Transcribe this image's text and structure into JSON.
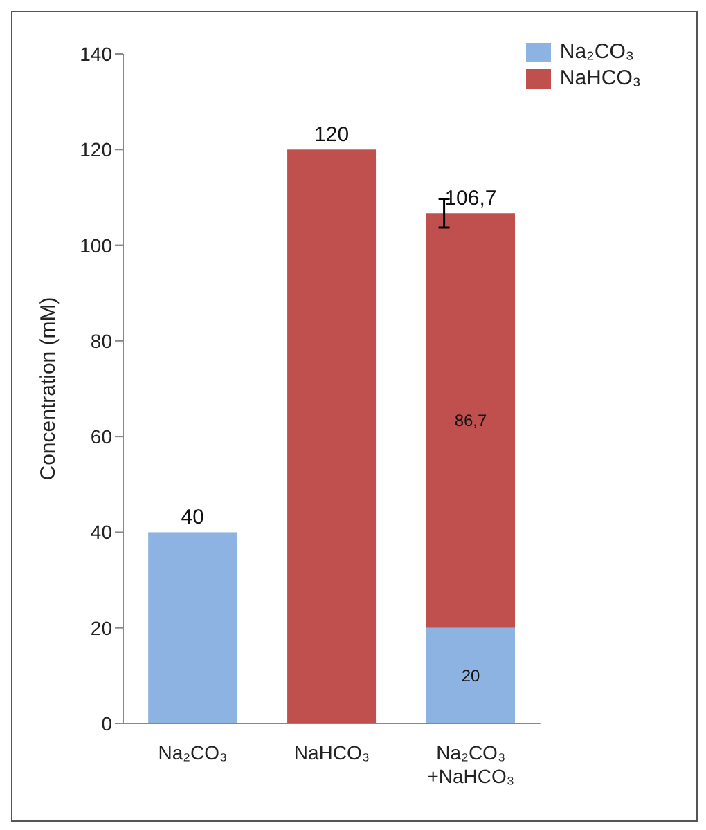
{
  "chart_data": {
    "type": "bar",
    "stacked": true,
    "ylabel": "Concentration (mM)",
    "categories": [
      "Na₂CO₃",
      "NaHCO₃",
      "Na₂CO₃ +NaHCO₃"
    ],
    "series": [
      {
        "name": "Na₂CO₃",
        "color": "#8db3e2",
        "values": [
          40,
          null,
          20
        ],
        "value_labels": [
          null,
          null,
          "20"
        ]
      },
      {
        "name": "NaHCO₃",
        "color": "#c0504d",
        "values": [
          null,
          120,
          86.7
        ],
        "value_labels": [
          null,
          null,
          "86,7"
        ],
        "errors": [
          null,
          null,
          3
        ]
      }
    ],
    "totals": [
      "40",
      "120",
      "106,7"
    ],
    "ylim": [
      0,
      140
    ],
    "yticks": [
      0,
      20,
      40,
      60,
      80,
      100,
      120,
      140
    ],
    "grid": false,
    "legend": "top right"
  }
}
